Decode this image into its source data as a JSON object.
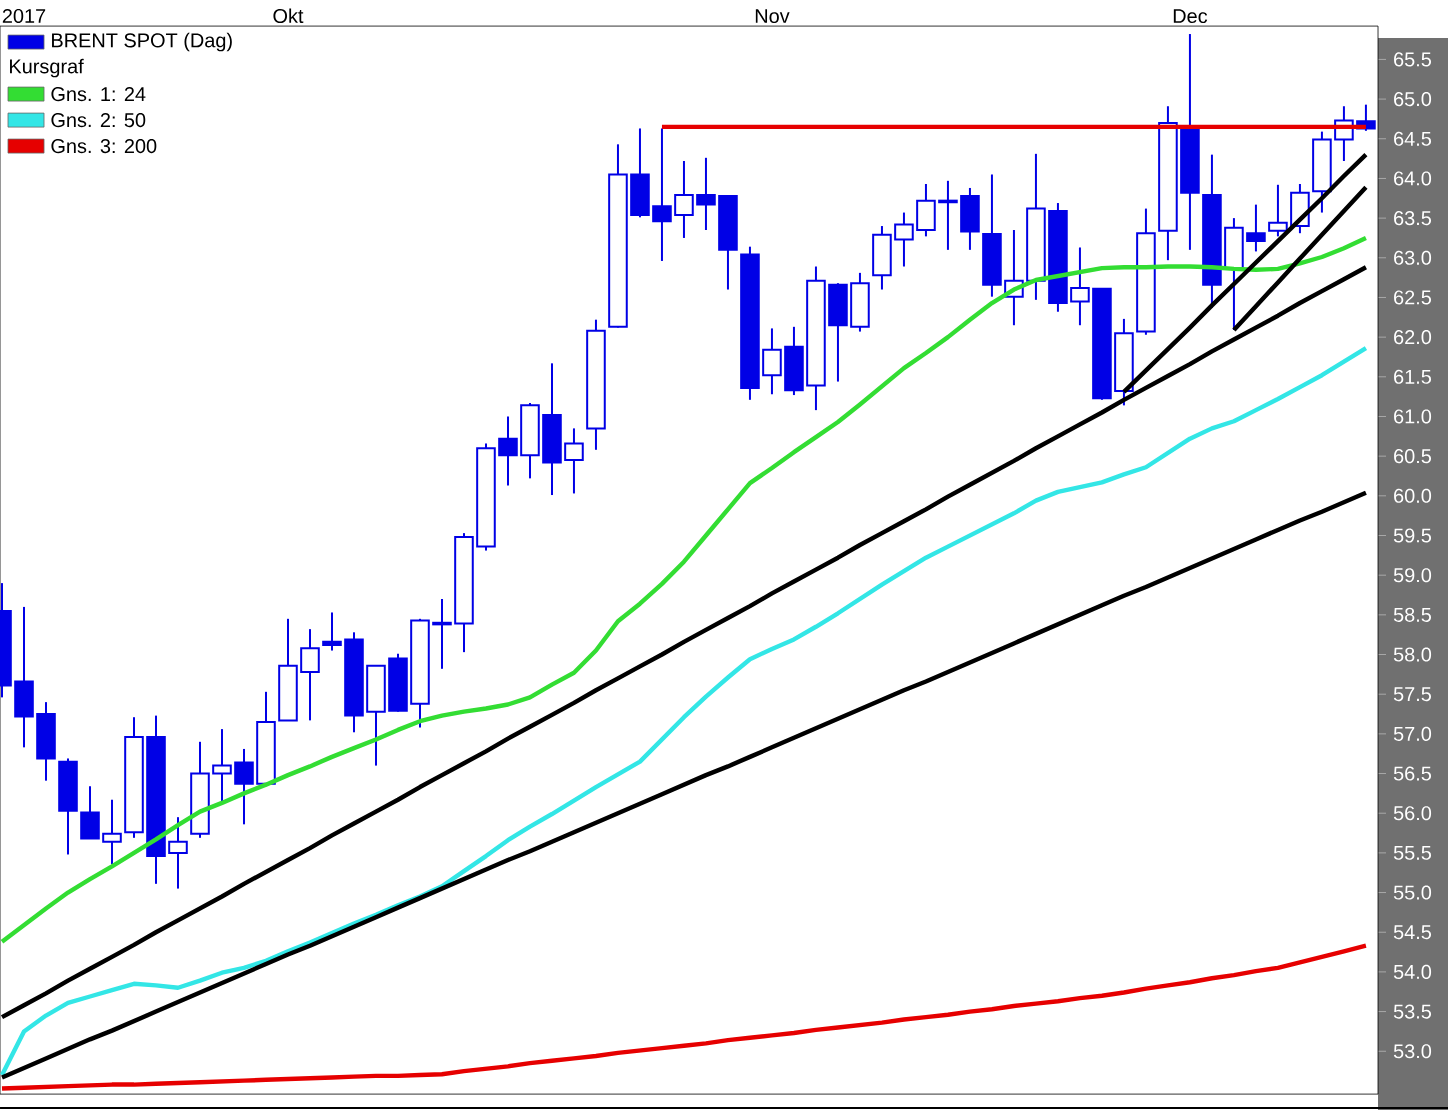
{
  "chart_data": {
    "type": "candlestick",
    "legend": "top left",
    "legend_title": "Kursgraf",
    "categories": [
      null,
      "2017",
      null,
      null,
      null,
      null,
      null,
      null,
      null,
      null,
      null,
      null,
      null,
      "Okt",
      null,
      null,
      null,
      null,
      null,
      null,
      null,
      null,
      null,
      null,
      null,
      null,
      null,
      null,
      null,
      null,
      null,
      null,
      null,
      null,
      null,
      "Nov",
      null,
      null,
      null,
      null,
      null,
      null,
      null,
      null,
      null,
      null,
      null,
      null,
      null,
      null,
      null,
      null,
      null,
      null,
      "Dec",
      null,
      null,
      null,
      null,
      null,
      null,
      null,
      null
    ],
    "ylim": [
      52.46,
      65.92
    ],
    "yticks": [
      {
        "value": 53,
        "label": "53.0"
      },
      53.5,
      {
        "value": 54,
        "label": "54.0"
      },
      54.5,
      {
        "value": 55,
        "label": "55.0"
      },
      55.5,
      {
        "value": 56,
        "label": "56.0"
      },
      56.5,
      {
        "value": 57,
        "label": "57.0"
      },
      57.5,
      {
        "value": 58,
        "label": "58.0"
      },
      58.5,
      {
        "value": 59,
        "label": "59.0"
      },
      59.5,
      {
        "value": 60,
        "label": "60.0"
      },
      60.5,
      {
        "value": 61,
        "label": "61.0"
      },
      61.5,
      {
        "value": 62,
        "label": "62.0"
      },
      62.5,
      {
        "value": 63,
        "label": "63.0"
      },
      63.5,
      {
        "value": 64,
        "label": "64.0"
      },
      64.5,
      {
        "value": 65,
        "label": "65.0"
      },
      65.5
    ],
    "series": [
      {
        "name": "BRENT SPOT (Dag)",
        "color": "#0000e6",
        "ohlc": [
          [
            58.55,
            58.9,
            57.46,
            57.61
          ],
          [
            57.66,
            58.6,
            56.83,
            57.22
          ],
          [
            57.25,
            57.4,
            56.41,
            56.69
          ],
          [
            56.65,
            56.69,
            55.48,
            56.03
          ],
          [
            56.01,
            56.34,
            55.68,
            55.68
          ],
          [
            55.64,
            56.17,
            55.36,
            55.74
          ],
          [
            55.76,
            57.21,
            55.69,
            56.96
          ],
          [
            56.96,
            57.23,
            55.11,
            55.46
          ],
          [
            55.5,
            55.95,
            55.05,
            55.64
          ],
          [
            55.74,
            56.9,
            55.69,
            56.5
          ],
          [
            56.5,
            57.06,
            56.13,
            56.6
          ],
          [
            56.64,
            56.81,
            55.86,
            56.37
          ],
          [
            56.37,
            57.53,
            56.34,
            57.15
          ],
          [
            57.17,
            58.45,
            57.17,
            57.86
          ],
          [
            57.78,
            58.32,
            57.17,
            58.08
          ],
          [
            58.16,
            58.53,
            58.05,
            58.12
          ],
          [
            58.19,
            58.28,
            57.02,
            57.23
          ],
          [
            57.28,
            57.86,
            56.6,
            57.86
          ],
          [
            57.95,
            58.01,
            57.28,
            57.29
          ],
          [
            57.38,
            58.45,
            57.08,
            58.43
          ],
          [
            58.38,
            58.7,
            57.82,
            58.4
          ],
          [
            58.39,
            59.53,
            58.03,
            59.48
          ],
          [
            59.36,
            60.66,
            59.31,
            60.6
          ],
          [
            60.72,
            61.0,
            60.13,
            60.51
          ],
          [
            60.51,
            61.17,
            60.22,
            61.14
          ],
          [
            61.02,
            61.67,
            60.01,
            60.42
          ],
          [
            60.45,
            60.85,
            60.03,
            60.66
          ],
          [
            60.85,
            62.22,
            60.58,
            62.08
          ],
          [
            62.13,
            64.43,
            62.12,
            64.05
          ],
          [
            64.05,
            64.63,
            63.51,
            63.54
          ],
          [
            63.65,
            64.63,
            62.96,
            63.46
          ],
          [
            63.54,
            64.22,
            63.25,
            63.79
          ],
          [
            63.79,
            64.26,
            63.35,
            63.67
          ],
          [
            63.78,
            63.78,
            62.6,
            63.1
          ],
          [
            63.04,
            63.14,
            61.21,
            61.36
          ],
          [
            61.52,
            62.11,
            61.28,
            61.84
          ],
          [
            61.88,
            62.13,
            61.27,
            61.33
          ],
          [
            61.39,
            62.89,
            61.08,
            62.71
          ],
          [
            62.66,
            62.68,
            61.44,
            62.15
          ],
          [
            62.13,
            62.81,
            62.07,
            62.68
          ],
          [
            62.78,
            63.4,
            62.6,
            63.29
          ],
          [
            63.23,
            63.57,
            62.89,
            63.42
          ],
          [
            63.35,
            63.93,
            63.27,
            63.72
          ],
          [
            63.7,
            63.97,
            63.1,
            63.72
          ],
          [
            63.78,
            63.88,
            63.1,
            63.33
          ],
          [
            63.3,
            64.05,
            62.51,
            62.66
          ],
          [
            62.51,
            63.35,
            62.15,
            62.71
          ],
          [
            62.71,
            64.31,
            62.47,
            63.62
          ],
          [
            63.59,
            63.69,
            62.32,
            62.43
          ],
          [
            62.45,
            63.13,
            62.15,
            62.62
          ],
          [
            62.61,
            62.61,
            61.21,
            61.23
          ],
          [
            61.32,
            62.23,
            61.14,
            62.05
          ],
          [
            62.07,
            63.62,
            62.03,
            63.31
          ],
          [
            63.34,
            64.91,
            62.97,
            64.7
          ],
          [
            64.66,
            65.82,
            63.1,
            63.82
          ],
          [
            63.79,
            64.3,
            62.37,
            62.66
          ],
          [
            62.87,
            63.5,
            62.09,
            63.38
          ],
          [
            63.31,
            63.67,
            63.08,
            63.21
          ],
          [
            63.34,
            63.92,
            63.27,
            63.44
          ],
          [
            63.4,
            63.93,
            63.31,
            63.82
          ],
          [
            63.84,
            64.59,
            63.57,
            64.49
          ],
          [
            64.49,
            64.91,
            64.22,
            64.73
          ],
          [
            64.72,
            64.93,
            64.6,
            64.63
          ]
        ]
      },
      {
        "name": "Gns. 1: 24",
        "type": "line",
        "color": "#33dd33",
        "values": [
          54.38,
          54.59,
          54.8,
          55.0,
          55.17,
          55.33,
          55.5,
          55.67,
          55.85,
          56.02,
          56.13,
          56.25,
          56.36,
          56.48,
          56.59,
          56.71,
          56.82,
          56.93,
          57.05,
          57.16,
          57.23,
          57.28,
          57.32,
          57.37,
          57.46,
          57.62,
          57.77,
          58.05,
          58.42,
          58.64,
          58.89,
          59.17,
          59.5,
          59.83,
          60.16,
          60.35,
          60.55,
          60.74,
          60.93,
          61.15,
          61.38,
          61.61,
          61.8,
          62.0,
          62.22,
          62.43,
          62.6,
          62.72,
          62.77,
          62.82,
          62.87,
          62.88,
          62.88,
          62.89,
          62.89,
          62.88,
          62.86,
          62.85,
          62.86,
          62.93,
          63.01,
          63.12,
          63.25
        ]
      },
      {
        "name": "Gns. 2: 50",
        "type": "line",
        "color": "#33e6e6",
        "values": [
          52.7,
          53.25,
          53.45,
          53.61,
          53.69,
          53.77,
          53.85,
          53.83,
          53.8,
          53.89,
          53.99,
          54.05,
          54.14,
          54.26,
          54.37,
          54.49,
          54.61,
          54.72,
          54.84,
          54.95,
          55.08,
          55.27,
          55.46,
          55.66,
          55.83,
          55.99,
          56.16,
          56.33,
          56.49,
          56.65,
          56.93,
          57.21,
          57.47,
          57.71,
          57.94,
          58.07,
          58.19,
          58.35,
          58.52,
          58.7,
          58.88,
          59.05,
          59.22,
          59.36,
          59.5,
          59.64,
          59.78,
          59.94,
          60.05,
          60.11,
          60.17,
          60.27,
          60.36,
          60.54,
          60.72,
          60.85,
          60.94,
          61.08,
          61.22,
          61.37,
          61.52,
          61.69,
          61.86
        ]
      },
      {
        "name": "Gns. 3: 200",
        "type": "line",
        "color": "#e60000",
        "values": [
          52.53,
          52.54,
          52.55,
          52.56,
          52.57,
          52.58,
          52.58,
          52.59,
          52.6,
          52.61,
          52.62,
          52.63,
          52.64,
          52.65,
          52.66,
          52.67,
          52.68,
          52.69,
          52.69,
          52.7,
          52.71,
          52.75,
          52.78,
          52.81,
          52.85,
          52.88,
          52.91,
          52.94,
          52.98,
          53.01,
          53.04,
          53.07,
          53.1,
          53.14,
          53.17,
          53.2,
          53.23,
          53.27,
          53.3,
          53.33,
          53.36,
          53.4,
          53.43,
          53.46,
          53.5,
          53.53,
          53.57,
          53.6,
          53.63,
          53.67,
          53.7,
          53.74,
          53.79,
          53.83,
          53.87,
          53.92,
          53.96,
          54.01,
          54.05,
          54.12,
          54.19,
          54.26,
          54.33
        ]
      },
      {
        "type": "line",
        "color": "#e60000",
        "values": [
          null,
          null,
          null,
          null,
          null,
          null,
          null,
          null,
          null,
          null,
          null,
          null,
          null,
          null,
          null,
          null,
          null,
          null,
          null,
          null,
          null,
          null,
          null,
          null,
          null,
          null,
          null,
          null,
          null,
          null,
          64.65,
          64.65,
          64.65,
          64.65,
          64.65,
          64.65,
          64.65,
          64.65,
          64.65,
          64.65,
          64.65,
          64.65,
          64.65,
          64.65,
          64.65,
          64.65,
          64.65,
          64.65,
          64.65,
          64.65,
          64.65,
          64.65,
          64.65,
          64.65,
          64.65,
          64.65,
          64.65,
          64.65,
          64.65,
          64.65,
          64.65,
          64.65,
          64.65
        ]
      },
      {
        "type": "line",
        "color": "#000000",
        "values": [
          53.43,
          53.58,
          53.73,
          53.89,
          54.04,
          54.19,
          54.34,
          54.5,
          54.65,
          54.8,
          54.95,
          55.11,
          55.26,
          55.41,
          55.56,
          55.72,
          55.87,
          56.02,
          56.17,
          56.33,
          56.48,
          56.63,
          56.78,
          56.94,
          57.09,
          57.24,
          57.39,
          57.55,
          57.7,
          57.85,
          58.0,
          58.16,
          58.31,
          58.46,
          58.61,
          58.77,
          58.92,
          59.07,
          59.22,
          59.38,
          59.53,
          59.68,
          59.83,
          59.99,
          60.14,
          60.29,
          60.44,
          60.6,
          60.75,
          60.9,
          61.05,
          61.21,
          61.36,
          61.51,
          61.66,
          61.82,
          61.97,
          62.12,
          62.27,
          62.43,
          62.58,
          62.73,
          62.88
        ]
      },
      {
        "type": "line",
        "color": "#000000",
        "values": [
          52.67,
          52.79,
          52.91,
          53.03,
          53.15,
          53.26,
          53.38,
          53.5,
          53.62,
          53.74,
          53.86,
          53.98,
          54.1,
          54.22,
          54.33,
          54.45,
          54.57,
          54.69,
          54.81,
          54.93,
          55.05,
          55.17,
          55.29,
          55.41,
          55.52,
          55.64,
          55.76,
          55.88,
          56.0,
          56.12,
          56.24,
          56.36,
          56.48,
          56.59,
          56.71,
          56.83,
          56.95,
          57.07,
          57.19,
          57.31,
          57.43,
          57.55,
          57.66,
          57.78,
          57.9,
          58.02,
          58.14,
          58.26,
          58.38,
          58.5,
          58.62,
          58.74,
          58.85,
          58.97,
          59.09,
          59.21,
          59.33,
          59.45,
          59.57,
          59.69,
          59.8,
          59.92,
          60.04
        ]
      },
      {
        "type": "line",
        "color": "#000000",
        "values": [
          null,
          null,
          null,
          null,
          null,
          null,
          null,
          null,
          null,
          null,
          null,
          null,
          null,
          null,
          null,
          null,
          null,
          null,
          null,
          null,
          null,
          null,
          null,
          null,
          null,
          null,
          null,
          null,
          null,
          null,
          null,
          null,
          null,
          null,
          null,
          null,
          null,
          null,
          null,
          null,
          null,
          null,
          null,
          null,
          null,
          null,
          null,
          null,
          null,
          null,
          null,
          61.31,
          61.58,
          61.85,
          62.12,
          62.4,
          62.67,
          62.94,
          63.21,
          63.48,
          63.75,
          64.03,
          64.3
        ]
      },
      {
        "type": "line",
        "color": "#000000",
        "values": [
          null,
          null,
          null,
          null,
          null,
          null,
          null,
          null,
          null,
          null,
          null,
          null,
          null,
          null,
          null,
          null,
          null,
          null,
          null,
          null,
          null,
          null,
          null,
          null,
          null,
          null,
          null,
          null,
          null,
          null,
          null,
          null,
          null,
          null,
          null,
          null,
          null,
          null,
          null,
          null,
          null,
          null,
          null,
          null,
          null,
          null,
          null,
          null,
          null,
          null,
          null,
          null,
          null,
          null,
          null,
          null,
          62.09,
          62.39,
          62.69,
          62.99,
          63.29,
          63.59,
          63.89
        ]
      }
    ]
  }
}
